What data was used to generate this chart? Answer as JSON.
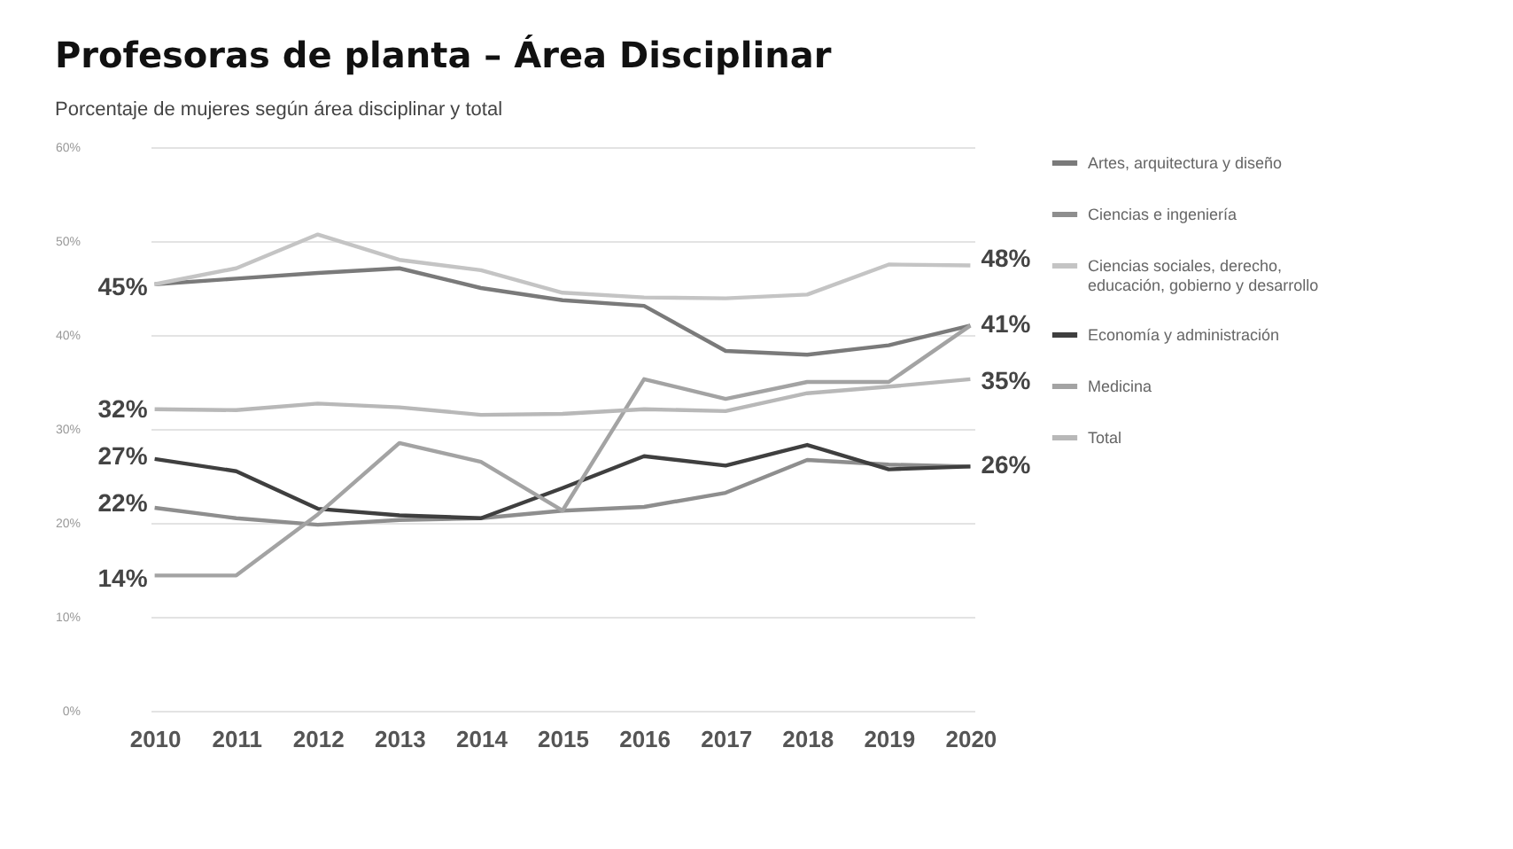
{
  "chart_data": {
    "type": "line",
    "title": "Profesoras de planta – Área Disciplinar",
    "subtitle": "Porcentaje de mujeres según área disciplinar y total",
    "categories": [
      "2010",
      "2011",
      "2012",
      "2013",
      "2014",
      "2015",
      "2016",
      "2017",
      "2018",
      "2019",
      "2020"
    ],
    "series": [
      {
        "name": "Artes, arquitectura y diseño",
        "color": "#7a7a7a",
        "values": [
          45.4,
          46.0,
          46.6,
          47.1,
          45.0,
          43.7,
          43.1,
          38.3,
          37.9,
          38.9,
          41.0
        ]
      },
      {
        "name": "Ciencias e ingeniería",
        "color": "#8e8e8e",
        "values": [
          21.6,
          20.5,
          19.8,
          20.3,
          20.5,
          21.3,
          21.7,
          23.2,
          26.7,
          26.2,
          26.0
        ]
      },
      {
        "name": "Ciencias sociales, derecho, educación, gobierno y desarrollo",
        "color": "#c4c4c4",
        "values": [
          45.4,
          47.1,
          50.7,
          48.0,
          46.9,
          44.5,
          44.0,
          43.9,
          44.3,
          47.5,
          47.4
        ]
      },
      {
        "name": "Economía y administración",
        "color": "#3f3f3f",
        "values": [
          26.8,
          25.5,
          21.5,
          20.8,
          20.5,
          23.7,
          27.1,
          26.1,
          28.3,
          25.7,
          26.0
        ]
      },
      {
        "name": "Medicina",
        "color": "#a3a3a3",
        "values": [
          14.4,
          14.4,
          20.9,
          28.5,
          26.5,
          21.3,
          35.3,
          33.2,
          35.0,
          35.0,
          41.0
        ]
      },
      {
        "name": "Total",
        "color": "#b8b8b8",
        "values": [
          32.1,
          32.0,
          32.7,
          32.3,
          31.5,
          31.6,
          32.1,
          31.9,
          33.8,
          34.5,
          35.3
        ]
      }
    ],
    "ylim": [
      0,
      60
    ],
    "yticks": [
      {
        "value": 0,
        "label": "0%"
      },
      {
        "value": 10,
        "label": "10%"
      },
      {
        "value": 20,
        "label": "20%"
      },
      {
        "value": 30,
        "label": "30%"
      },
      {
        "value": 40,
        "label": "40%"
      },
      {
        "value": 50,
        "label": "50%"
      },
      {
        "value": 60,
        "label": "60%"
      }
    ],
    "grid": "y",
    "legend": "right",
    "marker": "none",
    "line_style": "solid",
    "annotations": [
      {
        "text": "45%",
        "x": "2010",
        "y": 45
      },
      {
        "text": "32%",
        "x": "2010",
        "y": 32
      },
      {
        "text": "27%",
        "x": "2010",
        "y": 27
      },
      {
        "text": "22%",
        "x": "2010",
        "y": 22
      },
      {
        "text": "14%",
        "x": "2010",
        "y": 14
      },
      {
        "text": "48%",
        "x": "2020",
        "y": 48
      },
      {
        "text": "41%",
        "x": "2020",
        "y": 41
      },
      {
        "text": "35%",
        "x": "2020",
        "y": 35
      },
      {
        "text": "26%",
        "x": "2020",
        "y": 26
      }
    ]
  }
}
